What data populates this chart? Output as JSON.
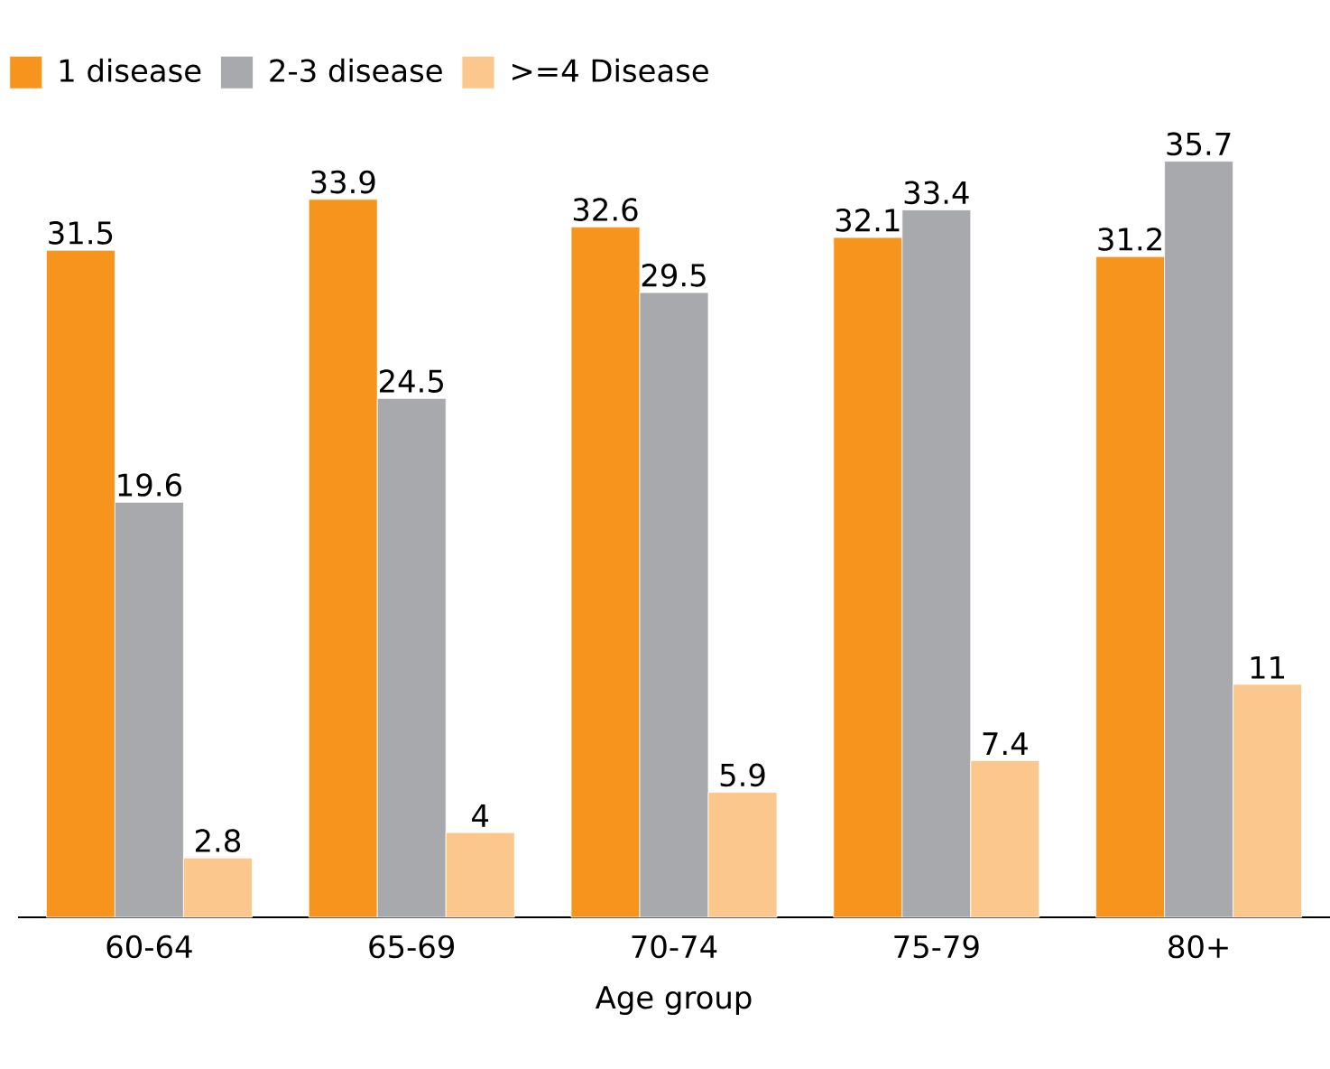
{
  "chart_data": {
    "type": "bar",
    "xlabel": "Age group",
    "categories": [
      "60-64",
      "65-69",
      "70-74",
      "75-79",
      "80+"
    ],
    "series": [
      {
        "name": "1 disease",
        "color": "#f7941d",
        "values": [
          31.5,
          33.9,
          32.6,
          32.1,
          31.2
        ]
      },
      {
        "name": "2-3 disease",
        "color": "#a7a9ac",
        "values": [
          19.6,
          24.5,
          29.5,
          33.4,
          35.7
        ]
      },
      {
        "name": ">=4 Disease",
        "color": "#fbc78c",
        "values": [
          2.8,
          4,
          5.9,
          7.4,
          11
        ]
      }
    ],
    "data_labels": true,
    "legend": "top left"
  }
}
